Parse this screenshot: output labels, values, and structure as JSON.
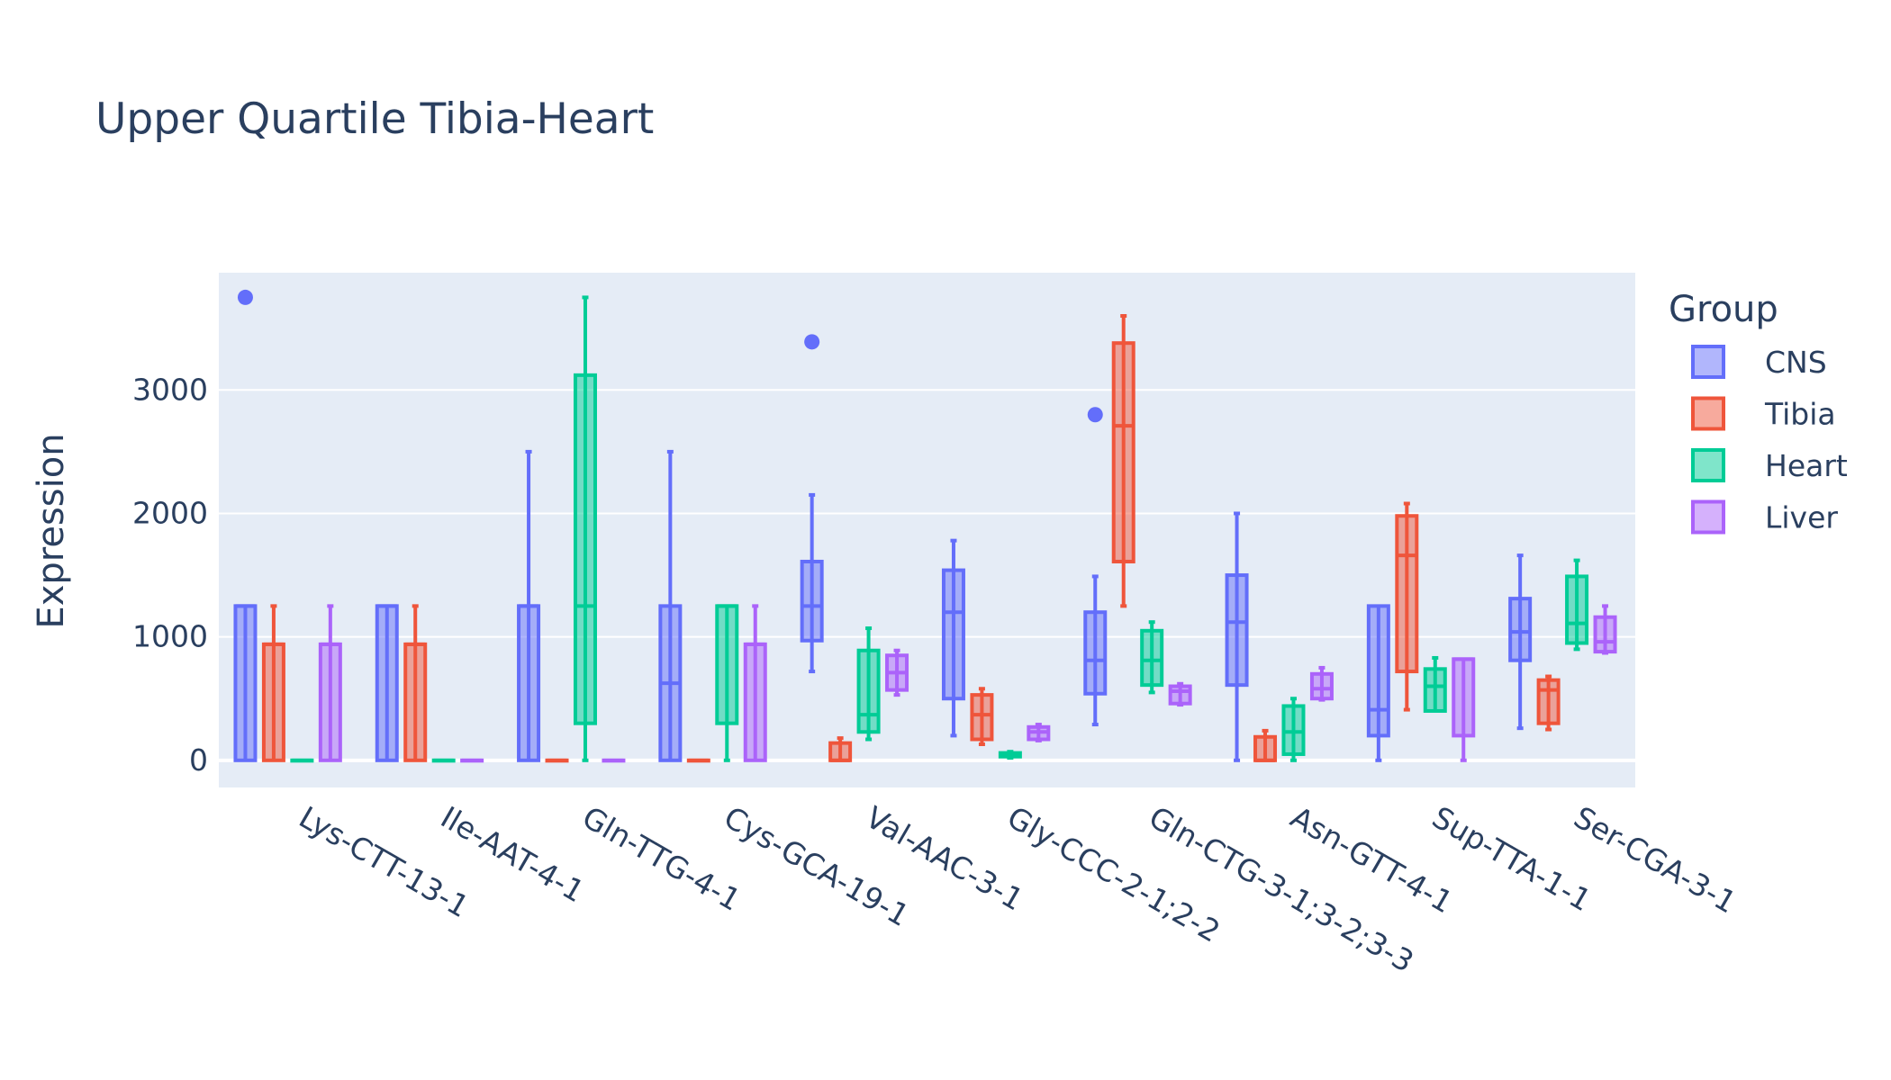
{
  "chart_data": {
    "type": "box",
    "title": "Upper Quartile Tibia-Heart",
    "xlabel": "",
    "ylabel": "Expression",
    "ylim": [
      -220,
      3950
    ],
    "yticks": [
      0,
      1000,
      2000,
      3000
    ],
    "grid": true,
    "legend": {
      "title": "Group",
      "placement": "right"
    },
    "categories": [
      "Lys-CTT-13-1",
      "Ile-AAT-4-1",
      "Gln-TTG-4-1",
      "Cys-GCA-19-1",
      "Val-AAC-3-1",
      "Gly-CCC-2-1;2-2",
      "Gln-CTG-3-1;3-2;3-3",
      "Asn-GTT-4-1",
      "Sup-TTA-1-1",
      "Ser-CGA-3-1"
    ],
    "series": [
      {
        "name": "CNS",
        "color": "#636efa",
        "boxes": [
          {
            "min": 0,
            "q1": 0,
            "median": 1250,
            "q3": 1250,
            "max": 1250,
            "outliers": [
              3750
            ]
          },
          {
            "min": 0,
            "q1": 0,
            "median": 1250,
            "q3": 1250,
            "max": 1250,
            "outliers": []
          },
          {
            "min": 0,
            "q1": 0,
            "median": 1250,
            "q3": 1250,
            "max": 2500,
            "outliers": []
          },
          {
            "min": 0,
            "q1": 0,
            "median": 625,
            "q3": 1250,
            "max": 2500,
            "outliers": []
          },
          {
            "min": 720,
            "q1": 970,
            "median": 1250,
            "q3": 1610,
            "max": 2150,
            "outliers": [
              3390
            ]
          },
          {
            "min": 200,
            "q1": 500,
            "median": 1200,
            "q3": 1540,
            "max": 1780,
            "outliers": []
          },
          {
            "min": 290,
            "q1": 540,
            "median": 810,
            "q3": 1200,
            "max": 1490,
            "outliers": [
              2800
            ]
          },
          {
            "min": 0,
            "q1": 610,
            "median": 1120,
            "q3": 1500,
            "max": 2000,
            "outliers": []
          },
          {
            "min": 0,
            "q1": 200,
            "median": 410,
            "q3": 1250,
            "max": 1250,
            "outliers": []
          },
          {
            "min": 260,
            "q1": 810,
            "median": 1040,
            "q3": 1310,
            "max": 1660,
            "outliers": []
          }
        ]
      },
      {
        "name": "Tibia",
        "color": "#EF553B",
        "boxes": [
          {
            "min": 0,
            "q1": 0,
            "median": 940,
            "q3": 940,
            "max": 1250,
            "outliers": []
          },
          {
            "min": 0,
            "q1": 0,
            "median": 940,
            "q3": 940,
            "max": 1250,
            "outliers": []
          },
          {
            "min": 0,
            "q1": 0,
            "median": 0,
            "q3": 0,
            "max": 0,
            "outliers": []
          },
          {
            "min": 0,
            "q1": 0,
            "median": 0,
            "q3": 0,
            "max": 0,
            "outliers": []
          },
          {
            "min": 0,
            "q1": 0,
            "median": 0,
            "q3": 140,
            "max": 180,
            "outliers": []
          },
          {
            "min": 130,
            "q1": 170,
            "median": 370,
            "q3": 530,
            "max": 580,
            "outliers": []
          },
          {
            "min": 1250,
            "q1": 1610,
            "median": 2710,
            "q3": 3380,
            "max": 3600,
            "outliers": []
          },
          {
            "min": 0,
            "q1": 0,
            "median": 0,
            "q3": 190,
            "max": 240,
            "outliers": []
          },
          {
            "min": 410,
            "q1": 720,
            "median": 1660,
            "q3": 1980,
            "max": 2080,
            "outliers": []
          },
          {
            "min": 250,
            "q1": 300,
            "median": 570,
            "q3": 650,
            "max": 680,
            "outliers": []
          }
        ]
      },
      {
        "name": "Heart",
        "color": "#00cc96",
        "boxes": [
          {
            "min": 0,
            "q1": 0,
            "median": 0,
            "q3": 0,
            "max": 0,
            "outliers": []
          },
          {
            "min": 0,
            "q1": 0,
            "median": 0,
            "q3": 0,
            "max": 0,
            "outliers": []
          },
          {
            "min": 0,
            "q1": 300,
            "median": 1250,
            "q3": 3120,
            "max": 3750,
            "outliers": []
          },
          {
            "min": 0,
            "q1": 300,
            "median": 1250,
            "q3": 1250,
            "max": 1250,
            "outliers": []
          },
          {
            "min": 170,
            "q1": 230,
            "median": 370,
            "q3": 890,
            "max": 1070,
            "outliers": []
          },
          {
            "min": 20,
            "q1": 30,
            "median": 50,
            "q3": 60,
            "max": 70,
            "outliers": []
          },
          {
            "min": 550,
            "q1": 610,
            "median": 810,
            "q3": 1050,
            "max": 1120,
            "outliers": []
          },
          {
            "min": 0,
            "q1": 50,
            "median": 230,
            "q3": 440,
            "max": 500,
            "outliers": []
          },
          {
            "min": 400,
            "q1": 400,
            "median": 600,
            "q3": 740,
            "max": 830,
            "outliers": []
          },
          {
            "min": 900,
            "q1": 950,
            "median": 1110,
            "q3": 1490,
            "max": 1620,
            "outliers": []
          }
        ]
      },
      {
        "name": "Liver",
        "color": "#ab63fa",
        "boxes": [
          {
            "min": 0,
            "q1": 0,
            "median": 940,
            "q3": 940,
            "max": 1250,
            "outliers": []
          },
          {
            "min": 0,
            "q1": 0,
            "median": 0,
            "q3": 0,
            "max": 0,
            "outliers": []
          },
          {
            "min": 0,
            "q1": 0,
            "median": 0,
            "q3": 0,
            "max": 0,
            "outliers": []
          },
          {
            "min": 0,
            "q1": 0,
            "median": 940,
            "q3": 940,
            "max": 1250,
            "outliers": []
          },
          {
            "min": 530,
            "q1": 570,
            "median": 710,
            "q3": 850,
            "max": 890,
            "outliers": []
          },
          {
            "min": 160,
            "q1": 170,
            "median": 230,
            "q3": 270,
            "max": 290,
            "outliers": []
          },
          {
            "min": 450,
            "q1": 460,
            "median": 560,
            "q3": 600,
            "max": 620,
            "outliers": []
          },
          {
            "min": 490,
            "q1": 500,
            "median": 580,
            "q3": 700,
            "max": 750,
            "outliers": []
          },
          {
            "min": 0,
            "q1": 200,
            "median": 820,
            "q3": 820,
            "max": 820,
            "outliers": []
          },
          {
            "min": 870,
            "q1": 880,
            "median": 960,
            "q3": 1160,
            "max": 1250,
            "outliers": []
          }
        ]
      }
    ]
  }
}
